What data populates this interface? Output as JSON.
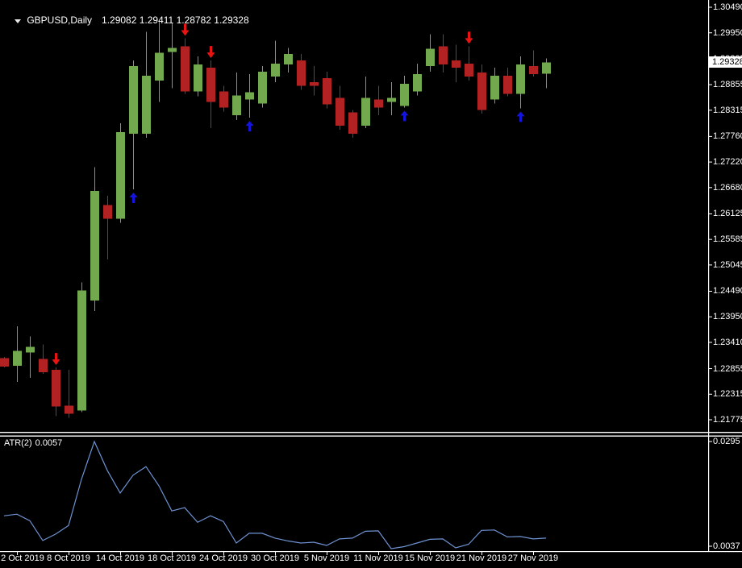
{
  "title_bar": {
    "symbol_period": "GBPUSD,Daily",
    "ohlc": "1.29082 1.29411 1.28782 1.29328"
  },
  "colors": {
    "background": "#000000",
    "text": "#ffffff",
    "axis_line": "#ffffff",
    "bull_candle": "#72A94E",
    "bear_candle": "#B22222",
    "down_arrow": "#E81414",
    "up_arrow": "#1414DC",
    "atr_line": "#6E93D2",
    "price_box_bg": "#ffffff",
    "price_box_text": "#000000"
  },
  "price_axis": {
    "current_label": "1.29328",
    "current_price": 1.29328,
    "ticks": [
      1.3049,
      1.2995,
      1.29395,
      1.28855,
      1.28315,
      1.2776,
      1.2722,
      1.2668,
      1.26125,
      1.25585,
      1.25045,
      1.2449,
      1.2395,
      1.2341,
      1.22855,
      1.22315,
      1.21775
    ]
  },
  "date_axis": {
    "labels": [
      {
        "text": "2 Oct 2019",
        "i": 1
      },
      {
        "text": "8 Oct 2019",
        "i": 5
      },
      {
        "text": "14 Oct 2019",
        "i": 9
      },
      {
        "text": "18 Oct 2019",
        "i": 13
      },
      {
        "text": "24 Oct 2019",
        "i": 17
      },
      {
        "text": "30 Oct 2019",
        "i": 21
      },
      {
        "text": "5 Nov 2019",
        "i": 25
      },
      {
        "text": "11 Nov 2019",
        "i": 29
      },
      {
        "text": "15 Nov 2019",
        "i": 33
      },
      {
        "text": "21 Nov 2019",
        "i": 37
      },
      {
        "text": "27 Nov 2019",
        "i": 41
      }
    ]
  },
  "chart_data": {
    "type": "candlestick",
    "symbol": "GBPUSD",
    "timeframe": "Daily",
    "title": "GBPUSD,Daily 1.29082 1.29411 1.28782 1.29328",
    "price_range": [
      1.21775,
      1.3049
    ],
    "grid": false,
    "candles": [
      {
        "d": "1 Oct 2019",
        "o": 1.2308,
        "h": 1.231,
        "l": 1.2288,
        "c": 1.229
      },
      {
        "d": "2 Oct 2019",
        "o": 1.22913,
        "h": 1.23753,
        "l": 1.22577,
        "c": 1.23232
      },
      {
        "d": "3 Oct 2019",
        "o": 1.23199,
        "h": 1.23535,
        "l": 1.22661,
        "c": 1.23317
      },
      {
        "d": "4 Oct 2019",
        "o": 1.23064,
        "h": 1.23367,
        "l": 1.22745,
        "c": 1.22779
      },
      {
        "d": "7 Oct 2019",
        "o": 1.22829,
        "h": 1.22879,
        "l": 1.21855,
        "c": 1.22056
      },
      {
        "d": "8 Oct 2019",
        "o": 1.22073,
        "h": 1.22829,
        "l": 1.21821,
        "c": 1.21905
      },
      {
        "d": "9 Oct 2019",
        "o": 1.21972,
        "h": 1.24677,
        "l": 1.21938,
        "c": 1.24509
      },
      {
        "d": "10 Oct 2019",
        "o": 1.24291,
        "h": 1.27113,
        "l": 1.24072,
        "c": 1.26609
      },
      {
        "d": "11 Oct 2019",
        "o": 1.26307,
        "h": 1.26508,
        "l": 1.25164,
        "c": 1.26021
      },
      {
        "d": "14 Oct 2019",
        "o": 1.26021,
        "h": 1.28037,
        "l": 1.25937,
        "c": 1.27852
      },
      {
        "d": "15 Oct 2019",
        "o": 1.27819,
        "h": 1.29364,
        "l": 1.26643,
        "c": 1.29247
      },
      {
        "d": "16 Oct 2019",
        "o": 1.27819,
        "h": 1.29969,
        "l": 1.27735,
        "c": 1.29045
      },
      {
        "d": "17 Oct 2019",
        "o": 1.28944,
        "h": 1.30204,
        "l": 1.28491,
        "c": 1.29532
      },
      {
        "d": "18 Oct 2019",
        "o": 1.29549,
        "h": 1.3017,
        "l": 1.28776,
        "c": 1.29633
      },
      {
        "d": "21 Oct 2019",
        "o": 1.29667,
        "h": 1.29835,
        "l": 1.28659,
        "c": 1.28709
      },
      {
        "d": "22 Oct 2019",
        "o": 1.28709,
        "h": 1.29448,
        "l": 1.28608,
        "c": 1.2928
      },
      {
        "d": "23 Oct 2019",
        "o": 1.29213,
        "h": 1.29364,
        "l": 1.27936,
        "c": 1.28491
      },
      {
        "d": "24 Oct 2019",
        "o": 1.28709,
        "h": 1.28827,
        "l": 1.28289,
        "c": 1.28373
      },
      {
        "d": "25 Oct 2019",
        "o": 1.28205,
        "h": 1.29112,
        "l": 1.28104,
        "c": 1.28625
      },
      {
        "d": "28 Oct 2019",
        "o": 1.28541,
        "h": 1.29079,
        "l": 1.28155,
        "c": 1.28693
      },
      {
        "d": "29 Oct 2019",
        "o": 1.28457,
        "h": 1.29247,
        "l": 1.28373,
        "c": 1.29129
      },
      {
        "d": "30 Oct 2019",
        "o": 1.29028,
        "h": 1.29785,
        "l": 1.28911,
        "c": 1.29297
      },
      {
        "d": "31 Oct 2019",
        "o": 1.2928,
        "h": 1.29633,
        "l": 1.29112,
        "c": 1.29499
      },
      {
        "d": "1 Nov 2019",
        "o": 1.29364,
        "h": 1.29499,
        "l": 1.28743,
        "c": 1.28827
      },
      {
        "d": "4 Nov 2019",
        "o": 1.28911,
        "h": 1.29247,
        "l": 1.28625,
        "c": 1.28827
      },
      {
        "d": "5 Nov 2019",
        "o": 1.28995,
        "h": 1.29129,
        "l": 1.28356,
        "c": 1.2844
      },
      {
        "d": "6 Nov 2019",
        "o": 1.28575,
        "h": 1.28827,
        "l": 1.27903,
        "c": 1.27987
      },
      {
        "d": "7 Nov 2019",
        "o": 1.28272,
        "h": 1.28323,
        "l": 1.27735,
        "c": 1.27819
      },
      {
        "d": "8 Nov 2019",
        "o": 1.27987,
        "h": 1.29028,
        "l": 1.27936,
        "c": 1.28575
      },
      {
        "d": "11 Nov 2019",
        "o": 1.28541,
        "h": 1.28827,
        "l": 1.28205,
        "c": 1.28373
      },
      {
        "d": "12 Nov 2019",
        "o": 1.28491,
        "h": 1.28911,
        "l": 1.28205,
        "c": 1.28575
      },
      {
        "d": "13 Nov 2019",
        "o": 1.28407,
        "h": 1.29045,
        "l": 1.28373,
        "c": 1.28877
      },
      {
        "d": "14 Nov 2019",
        "o": 1.28709,
        "h": 1.29297,
        "l": 1.28625,
        "c": 1.29079
      },
      {
        "d": "15 Nov 2019",
        "o": 1.29247,
        "h": 1.29919,
        "l": 1.29129,
        "c": 1.29616
      },
      {
        "d": "18 Nov 2019",
        "o": 1.29667,
        "h": 1.29919,
        "l": 1.29112,
        "c": 1.2928
      },
      {
        "d": "19 Nov 2019",
        "o": 1.29364,
        "h": 1.297,
        "l": 1.28911,
        "c": 1.29213
      },
      {
        "d": "20 Nov 2019",
        "o": 1.29297,
        "h": 1.29667,
        "l": 1.28944,
        "c": 1.29028
      },
      {
        "d": "21 Nov 2019",
        "o": 1.29112,
        "h": 1.2928,
        "l": 1.28239,
        "c": 1.28323
      },
      {
        "d": "22 Nov 2019",
        "o": 1.28541,
        "h": 1.29213,
        "l": 1.28457,
        "c": 1.29045
      },
      {
        "d": "25 Nov 2019",
        "o": 1.29045,
        "h": 1.29213,
        "l": 1.28608,
        "c": 1.28659
      },
      {
        "d": "26 Nov 2019",
        "o": 1.28659,
        "h": 1.29448,
        "l": 1.28356,
        "c": 1.2928
      },
      {
        "d": "27 Nov 2019",
        "o": 1.29247,
        "h": 1.29583,
        "l": 1.29028,
        "c": 1.29079
      },
      {
        "d": "28 Nov 2019",
        "o": 1.29082,
        "h": 1.29411,
        "l": 1.28782,
        "c": 1.29328
      }
    ],
    "markers": [
      {
        "i": 4,
        "dir": "down"
      },
      {
        "i": 14,
        "dir": "down"
      },
      {
        "i": 16,
        "dir": "down"
      },
      {
        "i": 36,
        "dir": "down"
      },
      {
        "i": 10,
        "dir": "up"
      },
      {
        "i": 19,
        "dir": "up"
      },
      {
        "i": 31,
        "dir": "up"
      },
      {
        "i": 40,
        "dir": "up"
      }
    ],
    "atr": {
      "label": "ATR(2)",
      "current": "0.0057",
      "axis_max": 0.0295,
      "axis_min": 0.0037,
      "values": [
        0.0112,
        0.0116,
        0.01,
        0.0051,
        0.0067,
        0.0088,
        0.0202,
        0.0295,
        0.0224,
        0.0168,
        0.0212,
        0.0233,
        0.0186,
        0.0124,
        0.0132,
        0.0096,
        0.0112,
        0.0098,
        0.0045,
        0.0069,
        0.0069,
        0.0057,
        0.005,
        0.0045,
        0.0047,
        0.0039,
        0.0055,
        0.0057,
        0.0074,
        0.0075,
        0.0031,
        0.0036,
        0.0045,
        0.0054,
        0.0055,
        0.0033,
        0.0042,
        0.0076,
        0.0077,
        0.006,
        0.0061,
        0.0055,
        0.0057
      ]
    }
  }
}
